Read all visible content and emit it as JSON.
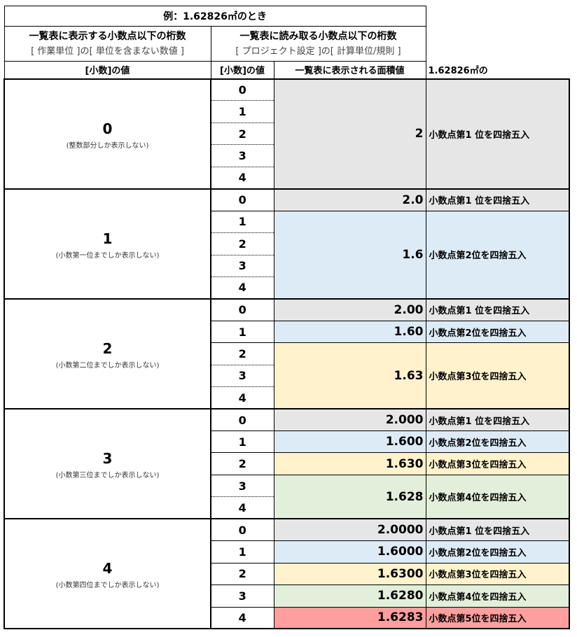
{
  "title": "例：1.62826㎡のとき",
  "header": {
    "display_digits": "一覧表に表示する小数点以下の桁数",
    "display_digits_source": "[ 作業単位 ]の[ 単位を含まない数値 ]",
    "read_digits": "一覧表に読み取る小数点以下の桁数",
    "read_digits_source": "[ プロジェクト設定 ]の[ 計算単位/規則 ]",
    "decimal_value_left": "[小数]の値",
    "decimal_value_mid": "[小数]の値",
    "area_value": "一覧表に表示される面積値",
    "note": "1.62826㎡の"
  },
  "colors": {
    "gray": "#e7e6e6",
    "blue": "#ddebf7",
    "yellow": "#fff2cc",
    "green": "#e2efda",
    "red": "#ff9e9e"
  },
  "sections": [
    {
      "value": "0",
      "desc": "(整数部分しか表示しない)",
      "digits": [
        "0",
        "1",
        "2",
        "3",
        "4"
      ],
      "groups": [
        {
          "start": 0,
          "span": 5,
          "area": "2",
          "rule": "小数点第1 位を四捨五入",
          "color": "gray"
        }
      ]
    },
    {
      "value": "1",
      "desc": "(小数第一位までしか表示しない)",
      "digits": [
        "0",
        "1",
        "2",
        "3",
        "4"
      ],
      "groups": [
        {
          "start": 0,
          "span": 1,
          "area": "2.0",
          "rule": "小数点第1 位を四捨五入",
          "color": "gray"
        },
        {
          "start": 1,
          "span": 4,
          "area": "1.6",
          "rule": "小数点第2位を四捨五入",
          "color": "blue"
        }
      ]
    },
    {
      "value": "2",
      "desc": "(小数第二位までしか表示しない)",
      "digits": [
        "0",
        "1",
        "2",
        "3",
        "4"
      ],
      "groups": [
        {
          "start": 0,
          "span": 1,
          "area": "2.00",
          "rule": "小数点第1 位を四捨五入",
          "color": "gray"
        },
        {
          "start": 1,
          "span": 1,
          "area": "1.60",
          "rule": "小数点第2位を四捨五入",
          "color": "blue"
        },
        {
          "start": 2,
          "span": 3,
          "area": "1.63",
          "rule": "小数点第3位を四捨五入",
          "color": "yellow"
        }
      ]
    },
    {
      "value": "3",
      "desc": "(小数第三位までしか表示しない)",
      "digits": [
        "0",
        "1",
        "2",
        "3",
        "4"
      ],
      "groups": [
        {
          "start": 0,
          "span": 1,
          "area": "2.000",
          "rule": "小数点第1 位を四捨五入",
          "color": "gray"
        },
        {
          "start": 1,
          "span": 1,
          "area": "1.600",
          "rule": "小数点第2位を四捨五入",
          "color": "blue"
        },
        {
          "start": 2,
          "span": 1,
          "area": "1.630",
          "rule": "小数点第3位を四捨五入",
          "color": "yellow"
        },
        {
          "start": 3,
          "span": 2,
          "area": "1.628",
          "rule": "小数点第4位を四捨五入",
          "color": "green"
        }
      ]
    },
    {
      "value": "4",
      "desc": "(小数第四位までしか表示しない)",
      "digits": [
        "0",
        "1",
        "2",
        "3",
        "4"
      ],
      "groups": [
        {
          "start": 0,
          "span": 1,
          "area": "2.0000",
          "rule": "小数点第1 位を四捨五入",
          "color": "gray"
        },
        {
          "start": 1,
          "span": 1,
          "area": "1.6000",
          "rule": "小数点第2位を四捨五入",
          "color": "blue"
        },
        {
          "start": 2,
          "span": 1,
          "area": "1.6300",
          "rule": "小数点第3位を四捨五入",
          "color": "yellow"
        },
        {
          "start": 3,
          "span": 1,
          "area": "1.6280",
          "rule": "小数点第4位を四捨五入",
          "color": "green"
        },
        {
          "start": 4,
          "span": 1,
          "area": "1.6283",
          "rule": "小数点第5位を四捨五入",
          "color": "red"
        }
      ]
    }
  ]
}
